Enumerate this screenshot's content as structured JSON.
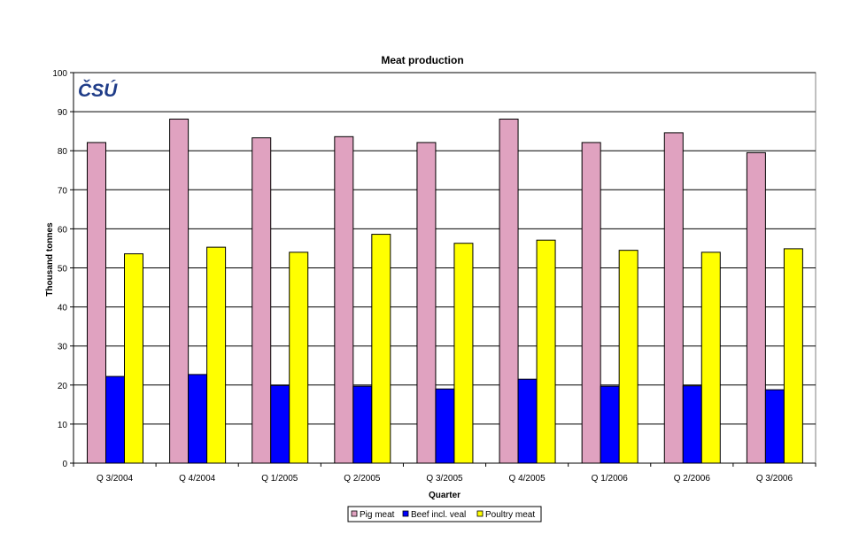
{
  "chart_data": {
    "type": "bar",
    "title": "Meat production",
    "xlabel": "Quarter",
    "ylabel": "Thousand tonnes",
    "ylim": [
      0,
      100
    ],
    "yticks": [
      0,
      10,
      20,
      30,
      40,
      50,
      60,
      70,
      80,
      90,
      100
    ],
    "grid": true,
    "legend_position": "bottom",
    "logo_text": "ČSÚ",
    "categories": [
      "Q 3/2004",
      "Q 4/2004",
      "Q 1/2005",
      "Q 2/2005",
      "Q 3/2005",
      "Q 4/2005",
      "Q 1/2006",
      "Q 2/2006",
      "Q 3/2006"
    ],
    "series": [
      {
        "name": "Pig meat",
        "color": "#E0A2C0",
        "values": [
          82.1,
          88.1,
          83.3,
          83.6,
          82.1,
          88.1,
          82.1,
          84.6,
          79.5
        ]
      },
      {
        "name": "Beef incl. veal",
        "color": "#0000FF",
        "values": [
          22.2,
          22.7,
          19.9,
          19.7,
          19.0,
          21.5,
          19.7,
          19.8,
          18.8
        ]
      },
      {
        "name": "Poultry meat",
        "color": "#FFFF00",
        "values": [
          53.6,
          55.3,
          54.0,
          58.6,
          56.3,
          57.1,
          54.5,
          54.0,
          54.9
        ]
      }
    ]
  }
}
